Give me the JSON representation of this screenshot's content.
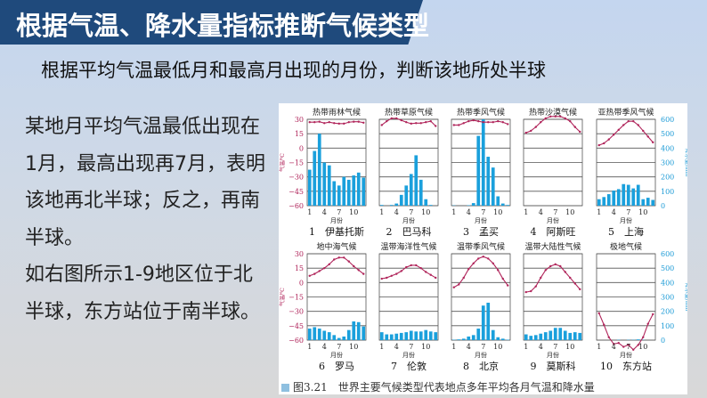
{
  "header": {
    "title": "根据气温、降水量指标推断气候类型",
    "subtitle": "根据平均气温最低月和最高月出现的月份，判断该地所处半球"
  },
  "body": {
    "paragraphs": [
      "某地月平均气温最低出现在1月，最高出现再7月，表明该地再北半球；反之，再南半球。",
      "如右图所示1-9地区位于北半球，东方站位于南半球。"
    ]
  },
  "figure": {
    "caption": "图3.21　世界主要气候类型代表地点多年平均各月气温和降水量",
    "temp_axis_label": "气温/℃",
    "precip_axis_label": "降水量/mm",
    "x_label": "月份",
    "colors": {
      "temp_line": "#b0245a",
      "precip_bar": "#1aa0dc",
      "axis_text_temp": "#b0245a",
      "axis_text_precip": "#1a9ad6"
    }
  },
  "chart_data": [
    {
      "type": "bar+line",
      "title": "热带雨林气候",
      "station": "1　伊基托斯",
      "x": [
        1,
        2,
        3,
        4,
        5,
        6,
        7,
        8,
        9,
        10,
        11,
        12
      ],
      "temp_c": [
        27,
        27,
        27.5,
        26,
        27,
        26,
        25.5,
        25.5,
        27,
        27.5,
        27.5,
        26.5
      ],
      "precip_mm": [
        250,
        380,
        500,
        300,
        280,
        170,
        140,
        200,
        180,
        210,
        230,
        195
      ],
      "ylim_temp": [
        -60,
        30
      ],
      "ylim_precip": [
        0,
        600
      ]
    },
    {
      "type": "bar+line",
      "title": "热带草原气候",
      "station": "2　巴马科",
      "x": [
        1,
        2,
        3,
        4,
        5,
        6,
        7,
        8,
        9,
        10,
        11,
        12
      ],
      "temp_c": [
        24,
        28,
        31,
        31,
        29,
        27,
        25.5,
        26,
        26,
        27,
        28,
        23
      ],
      "precip_mm": [
        5,
        0,
        5,
        15,
        75,
        140,
        220,
        350,
        180,
        45,
        5,
        0
      ],
      "ylim_temp": [
        -60,
        30
      ],
      "ylim_precip": [
        0,
        600
      ]
    },
    {
      "type": "bar+line",
      "title": "热带季风气候",
      "station": "3　孟买",
      "x": [
        1,
        2,
        3,
        4,
        5,
        6,
        7,
        8,
        9,
        10,
        11,
        12
      ],
      "temp_c": [
        24,
        24,
        26,
        28,
        29,
        28,
        27,
        27,
        27,
        28,
        27,
        25
      ],
      "precip_mm": [
        2,
        1,
        1,
        3,
        18,
        485,
        620,
        340,
        265,
        65,
        15,
        5
      ],
      "ylim_temp": [
        -60,
        30
      ],
      "ylim_precip": [
        0,
        600
      ]
    },
    {
      "type": "bar+line",
      "title": "热带沙漠气候",
      "station": "4　阿斯旺",
      "x": [
        1,
        2,
        3,
        4,
        5,
        6,
        7,
        8,
        9,
        10,
        11,
        12
      ],
      "temp_c": [
        16,
        18,
        22,
        27,
        31,
        33,
        33,
        33,
        31,
        28,
        22,
        17
      ],
      "precip_mm": [
        0,
        0,
        0,
        0,
        1,
        0,
        0,
        0,
        0,
        1,
        0,
        0
      ],
      "ylim_temp": [
        -60,
        30
      ],
      "ylim_precip": [
        0,
        600
      ]
    },
    {
      "type": "bar+line",
      "title": "亚热带季风气候",
      "station": "5　上海",
      "x": [
        1,
        2,
        3,
        4,
        5,
        6,
        7,
        8,
        9,
        10,
        11,
        12
      ],
      "temp_c": [
        3,
        5,
        9,
        14,
        19,
        24,
        28,
        28,
        24,
        18,
        12,
        6
      ],
      "precip_mm": [
        45,
        60,
        80,
        105,
        115,
        150,
        145,
        120,
        145,
        45,
        55,
        40
      ],
      "ylim_temp": [
        -60,
        30
      ],
      "ylim_precip": [
        0,
        600
      ]
    },
    {
      "type": "bar+line",
      "title": "地中海气候",
      "station": "6　罗马",
      "x": [
        1,
        2,
        3,
        4,
        5,
        6,
        7,
        8,
        9,
        10,
        11,
        12
      ],
      "temp_c": [
        7,
        9,
        12,
        15,
        19,
        24,
        26,
        26,
        22,
        17,
        13,
        9
      ],
      "precip_mm": [
        80,
        90,
        80,
        65,
        55,
        35,
        15,
        25,
        70,
        130,
        125,
        95
      ],
      "ylim_temp": [
        -60,
        30
      ],
      "ylim_precip": [
        0,
        600
      ]
    },
    {
      "type": "bar+line",
      "title": "温带海洋性气候",
      "station": "7　伦敦",
      "x": [
        1,
        2,
        3,
        4,
        5,
        6,
        7,
        8,
        9,
        10,
        11,
        12
      ],
      "temp_c": [
        4,
        5,
        7,
        9,
        12,
        16,
        18,
        18,
        15,
        11,
        8,
        5
      ],
      "precip_mm": [
        55,
        40,
        40,
        45,
        50,
        55,
        65,
        60,
        60,
        70,
        60,
        55
      ],
      "ylim_temp": [
        -60,
        30
      ],
      "ylim_precip": [
        0,
        600
      ]
    },
    {
      "type": "bar+line",
      "title": "温带季风气候",
      "station": "8　北京",
      "x": [
        1,
        2,
        3,
        4,
        5,
        6,
        7,
        8,
        9,
        10,
        11,
        12
      ],
      "temp_c": [
        -5,
        -2,
        5,
        14,
        20,
        25,
        27,
        25,
        20,
        13,
        4,
        -3
      ],
      "precip_mm": [
        3,
        5,
        10,
        25,
        35,
        80,
        240,
        260,
        70,
        20,
        10,
        3
      ],
      "ylim_temp": [
        -60,
        30
      ],
      "ylim_precip": [
        0,
        600
      ]
    },
    {
      "type": "bar+line",
      "title": "温带大陆性气候",
      "station": "9　莫斯科",
      "x": [
        1,
        2,
        3,
        4,
        5,
        6,
        7,
        8,
        9,
        10,
        11,
        12
      ],
      "temp_c": [
        -10,
        -9,
        -4,
        5,
        13,
        17,
        19,
        17,
        11,
        5,
        -1,
        -7
      ],
      "precip_mm": [
        40,
        30,
        35,
        45,
        55,
        65,
        85,
        85,
        65,
        50,
        55,
        50
      ],
      "ylim_temp": [
        -60,
        30
      ],
      "ylim_precip": [
        0,
        600
      ]
    },
    {
      "type": "bar+line",
      "title": "极地气候",
      "station": "10　东方站",
      "x": [
        1,
        2,
        3,
        4,
        5,
        6,
        7,
        8,
        9,
        10,
        11,
        12
      ],
      "temp_c": [
        -32,
        -44,
        -57,
        -64,
        -63,
        -67,
        -65,
        -70,
        -65,
        -57,
        -43,
        -33
      ],
      "precip_mm": [
        1,
        1,
        1,
        1,
        2,
        1,
        2,
        2,
        5,
        2,
        1,
        1
      ],
      "ylim_temp": [
        -60,
        30
      ],
      "ylim_precip": [
        0,
        600
      ]
    }
  ],
  "axis": {
    "temp_ticks": [
      "30",
      "15",
      "0",
      "−15",
      "−30",
      "−45",
      "−60"
    ],
    "precip_ticks": [
      "600",
      "500",
      "400",
      "300",
      "200",
      "100",
      "0"
    ],
    "month_ticks": [
      "1",
      "4",
      "7",
      "10"
    ]
  }
}
